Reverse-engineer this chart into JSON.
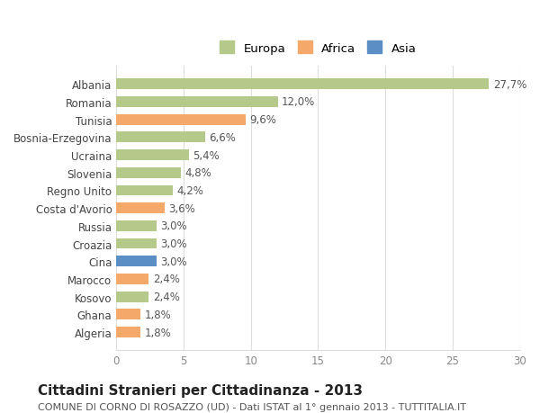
{
  "categories": [
    "Albania",
    "Romania",
    "Tunisia",
    "Bosnia-Erzegovina",
    "Ucraina",
    "Slovenia",
    "Regno Unito",
    "Costa d'Avorio",
    "Russia",
    "Croazia",
    "Cina",
    "Marocco",
    "Kosovo",
    "Ghana",
    "Algeria"
  ],
  "values": [
    27.7,
    12.0,
    9.6,
    6.6,
    5.4,
    4.8,
    4.2,
    3.6,
    3.0,
    3.0,
    3.0,
    2.4,
    2.4,
    1.8,
    1.8
  ],
  "labels": [
    "27,7%",
    "12,0%",
    "9,6%",
    "6,6%",
    "5,4%",
    "4,8%",
    "4,2%",
    "3,6%",
    "3,0%",
    "3,0%",
    "3,0%",
    "2,4%",
    "2,4%",
    "1,8%",
    "1,8%"
  ],
  "continent": [
    "Europa",
    "Europa",
    "Africa",
    "Europa",
    "Europa",
    "Europa",
    "Europa",
    "Africa",
    "Europa",
    "Europa",
    "Asia",
    "Africa",
    "Europa",
    "Africa",
    "Africa"
  ],
  "colors": {
    "Europa": "#b5c98a",
    "Africa": "#f4a96a",
    "Asia": "#5b8ec4"
  },
  "legend_colors": {
    "Europa": "#b5c98a",
    "Africa": "#f4a96a",
    "Asia": "#5b8ec4"
  },
  "xlim": [
    0,
    30
  ],
  "xticks": [
    0,
    5,
    10,
    15,
    20,
    25,
    30
  ],
  "title": "Cittadini Stranieri per Cittadinanza - 2013",
  "subtitle": "COMUNE DI CORNO DI ROSAZZO (UD) - Dati ISTAT al 1° gennaio 2013 - TUTTITALIA.IT",
  "background_color": "#ffffff",
  "grid_color": "#dddddd",
  "bar_height": 0.6,
  "label_fontsize": 8.5,
  "tick_fontsize": 8.5,
  "title_fontsize": 11,
  "subtitle_fontsize": 8
}
